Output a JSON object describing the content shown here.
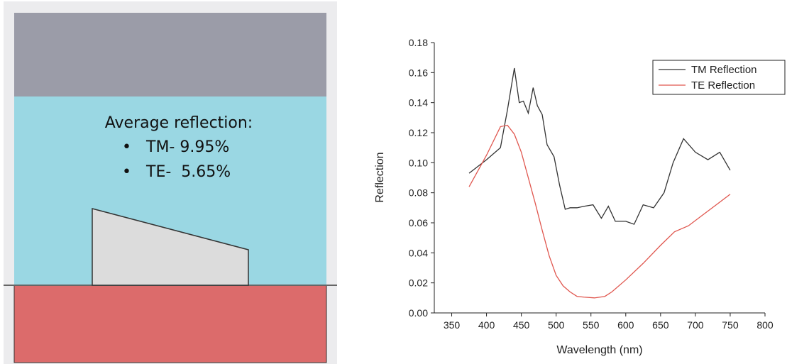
{
  "diagram": {
    "heading": "Average reflection:",
    "items": [
      "TM- 9.95%",
      "TE-  5.65%"
    ]
  },
  "chart_data": {
    "type": "line",
    "xlabel": "Wavelength (nm)",
    "ylabel": "Reflection",
    "xlim": [
      325,
      800
    ],
    "xticks": [
      350,
      400,
      450,
      500,
      550,
      600,
      650,
      700,
      750,
      800
    ],
    "ylim": [
      0,
      0.18
    ],
    "yticks": [
      {
        "value": 0,
        "label": "0.00"
      },
      {
        "value": 0.02,
        "label": "0.02"
      },
      {
        "value": 0.04,
        "label": "0.04"
      },
      {
        "value": 0.06,
        "label": "0.06"
      },
      {
        "value": 0.08,
        "label": "0.08"
      },
      {
        "value": 0.1,
        "label": "0.10"
      },
      {
        "value": 0.12,
        "label": "0.12"
      },
      {
        "value": 0.14,
        "label": "0.14"
      },
      {
        "value": 0.16,
        "label": "0.16"
      },
      {
        "value": 0.18,
        "label": "0.18"
      }
    ],
    "legend": "upper right",
    "series": [
      {
        "name": "TM Reflection",
        "color": "#333333",
        "x": [
          375,
          400,
          420,
          430,
          440,
          447,
          453,
          460,
          467,
          473,
          480,
          487,
          497,
          505,
          513,
          520,
          530,
          540,
          553,
          565,
          575,
          585,
          600,
          612,
          625,
          640,
          655,
          668,
          683,
          700,
          718,
          735,
          750
        ],
        "values": [
          0.093,
          0.102,
          0.11,
          0.135,
          0.163,
          0.14,
          0.141,
          0.133,
          0.15,
          0.138,
          0.132,
          0.112,
          0.104,
          0.085,
          0.069,
          0.07,
          0.07,
          0.071,
          0.072,
          0.063,
          0.071,
          0.061,
          0.061,
          0.059,
          0.072,
          0.07,
          0.08,
          0.1,
          0.116,
          0.107,
          0.102,
          0.107,
          0.095
        ]
      },
      {
        "name": "TE Reflection",
        "color": "#e0574f",
        "x": [
          375,
          400,
          420,
          430,
          440,
          450,
          460,
          470,
          480,
          490,
          500,
          510,
          520,
          530,
          540,
          555,
          570,
          580,
          600,
          625,
          650,
          670,
          690,
          710,
          730,
          750
        ],
        "values": [
          0.084,
          0.105,
          0.124,
          0.125,
          0.119,
          0.107,
          0.09,
          0.073,
          0.055,
          0.038,
          0.025,
          0.018,
          0.014,
          0.011,
          0.0105,
          0.01,
          0.011,
          0.014,
          0.022,
          0.033,
          0.045,
          0.054,
          0.058,
          0.065,
          0.072,
          0.079
        ]
      }
    ]
  }
}
